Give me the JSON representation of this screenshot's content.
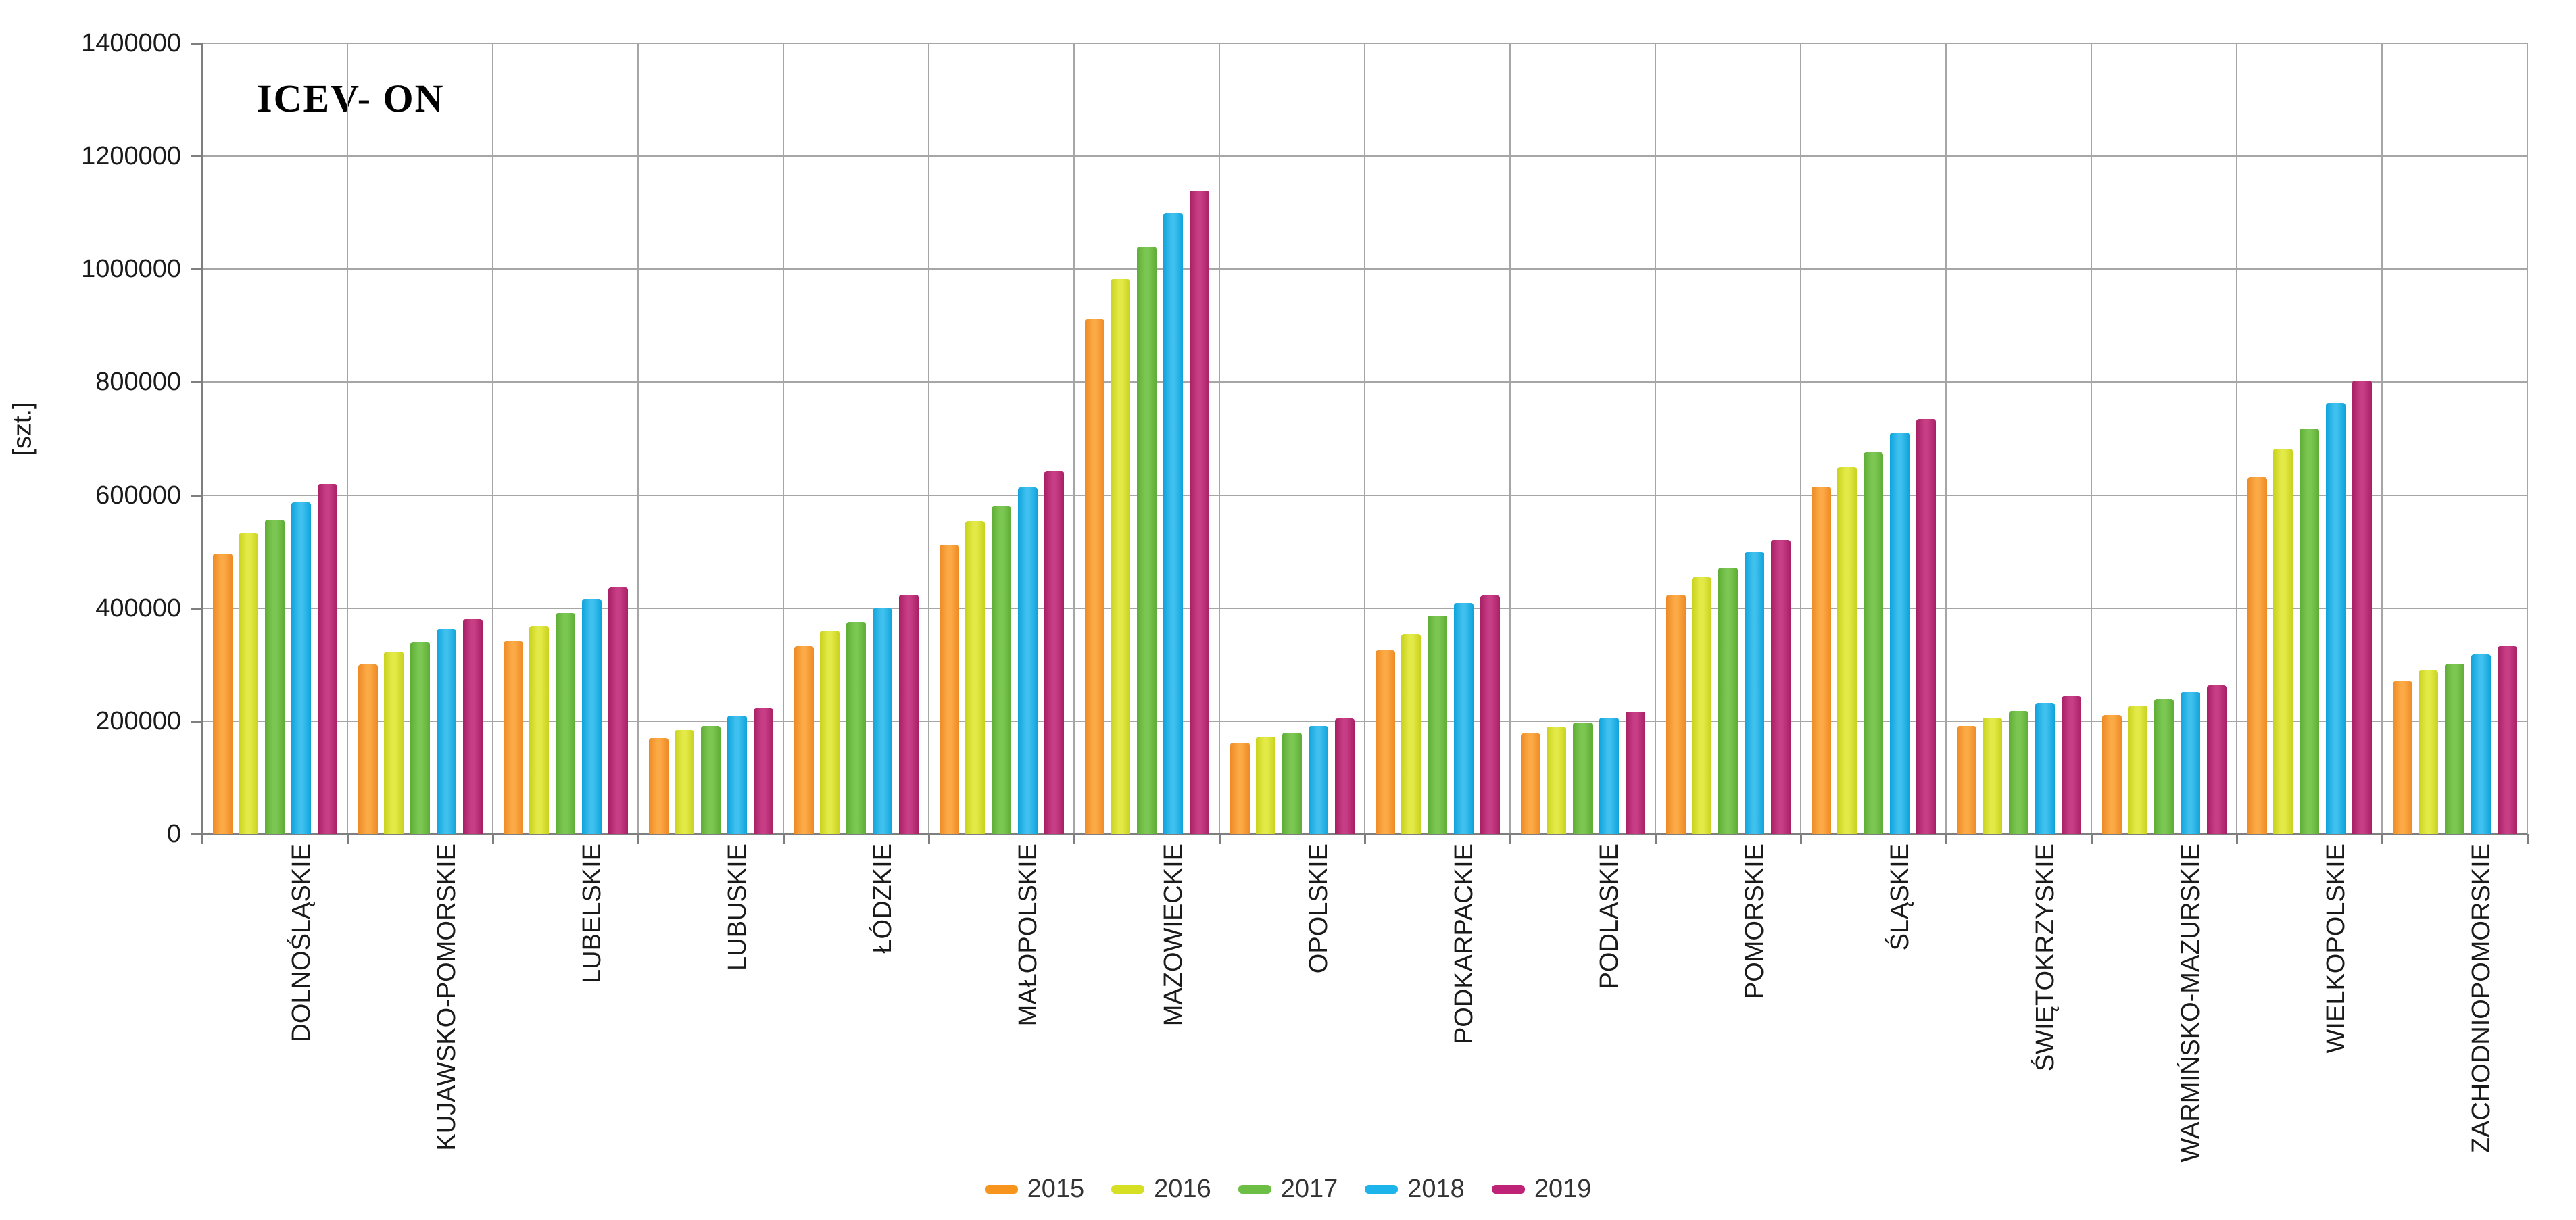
{
  "chart_data": {
    "type": "bar",
    "title": "ICEV- ON",
    "ylabel": "[szt.]",
    "ylim": [
      0,
      1400000
    ],
    "ytick_step": 200000,
    "ytick_labels": [
      "0",
      "200000",
      "400000",
      "600000",
      "800000",
      "1000000",
      "1200000",
      "1400000"
    ],
    "grid": true,
    "legend_position": "bottom",
    "categories": [
      "DOLNOŚLĄSKIE",
      "KUJAWSKO-POMORSKIE",
      "LUBELSKIE",
      "LUBUSKIE",
      "ŁÓDZKIE",
      "MAŁOPOLSKIE",
      "MAZOWIECKIE",
      "OPOLSKIE",
      "PODKARPACKIE",
      "PODLASKIE",
      "POMORSKIE",
      "ŚLĄSKIE",
      "ŚWIĘTOKRZYSKIE",
      "WARMIŃSKO-MAZURSKIE",
      "WIELKOPOLSKIE",
      "ZACHODNIOPOMORSKIE"
    ],
    "series": [
      {
        "name": "2015",
        "color": "#F7941E",
        "gradient": [
          "#EE8A25",
          "#FBAA46"
        ],
        "values": [
          497000,
          300000,
          341000,
          170000,
          333000,
          512000,
          912000,
          162000,
          326000,
          178000,
          424000,
          615000,
          191000,
          211000,
          632000,
          270000
        ]
      },
      {
        "name": "2016",
        "color": "#D7DF23",
        "gradient": [
          "#C9D21D",
          "#E3EA48"
        ],
        "values": [
          532000,
          323000,
          368000,
          184000,
          360000,
          554000,
          982000,
          172000,
          354000,
          190000,
          455000,
          650000,
          206000,
          227000,
          682000,
          290000
        ]
      },
      {
        "name": "2017",
        "color": "#6CBE45",
        "gradient": [
          "#5EAD36",
          "#7CC753"
        ],
        "values": [
          556000,
          340000,
          391000,
          192000,
          376000,
          580000,
          1040000,
          180000,
          386000,
          197000,
          471000,
          676000,
          218000,
          239000,
          718000,
          302000
        ]
      },
      {
        "name": "2018",
        "color": "#1CB4EA",
        "gradient": [
          "#0FA3DB",
          "#3FC0EE"
        ],
        "values": [
          588000,
          363000,
          416000,
          209000,
          400000,
          614000,
          1100000,
          192000,
          409000,
          206000,
          499000,
          711000,
          232000,
          251000,
          764000,
          318000
        ]
      },
      {
        "name": "2019",
        "color": "#BE2378",
        "gradient": [
          "#A81F65",
          "#C83E86"
        ],
        "values": [
          620000,
          381000,
          437000,
          222000,
          423000,
          643000,
          1139000,
          205000,
          422000,
          216000,
          521000,
          735000,
          244000,
          263000,
          803000,
          333000
        ]
      }
    ]
  }
}
